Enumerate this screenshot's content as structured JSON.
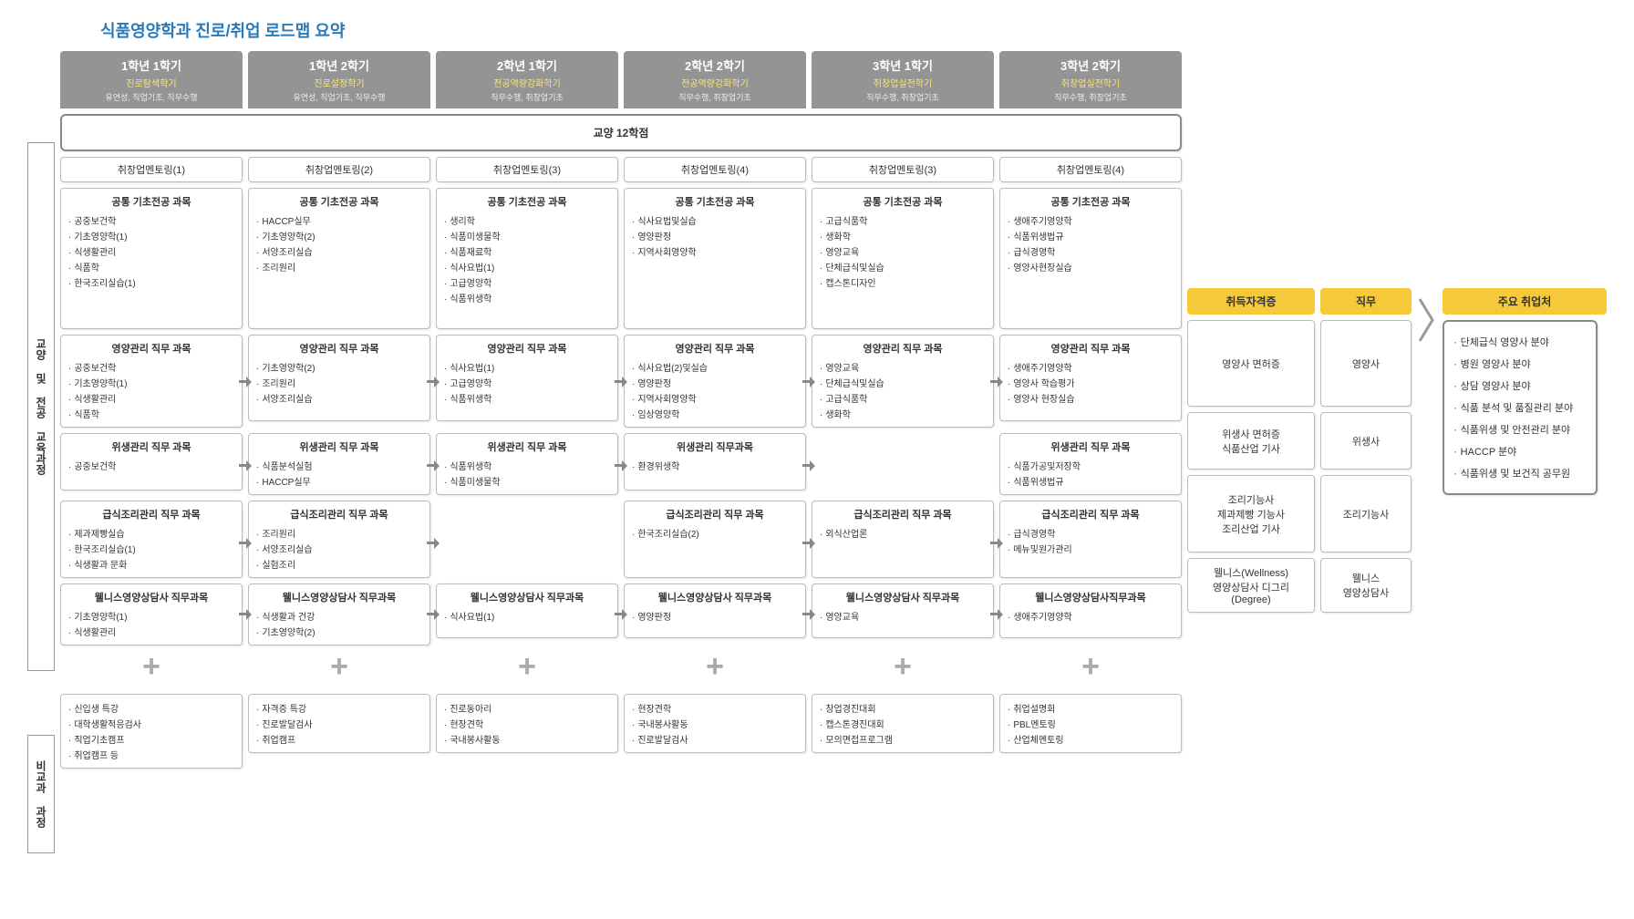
{
  "title": "식품영양학과 진로/취업 로드맵 요약",
  "sidebar": {
    "top": "교양 및 전공 교육과정",
    "bottom": "비교과 과정"
  },
  "bigbar": "교양 12학점",
  "plus": "+",
  "semesters": [
    {
      "l1": "1학년 1학기",
      "l2": "진로탐색학기",
      "l3": "유연성, 직업기초, 직무수행",
      "mentor": "취창업멘토링(1)",
      "common": {
        "t": "공통 기초전공 과목",
        "i": [
          "공중보건학",
          "기초영양학(1)",
          "식생활관리",
          "식품학",
          "한국조리실습(1)"
        ]
      },
      "tracks": [
        {
          "t": "영양관리 직무 과목",
          "i": [
            "공중보건학",
            "기초영양학(1)",
            "식생활관리",
            "식품학"
          ]
        },
        {
          "t": "위생관리 직무 과목",
          "i": [
            "공중보건학"
          ]
        },
        {
          "t": "급식조리관리 직무 과목",
          "i": [
            "제과제빵실습",
            "한국조리실습(1)",
            "식생활과 문화"
          ]
        },
        {
          "t": "웰니스영양상담사 직무과목",
          "i": [
            "기초영양학(1)",
            "식생활관리"
          ]
        }
      ],
      "extra": [
        "신입생 특강",
        "대학생활적응검사",
        "직업기초캠프",
        "취업캠프 등"
      ]
    },
    {
      "l1": "1학년 2학기",
      "l2": "진로설정학기",
      "l3": "유연성, 직업기초, 직무수행",
      "mentor": "취창업멘토링(2)",
      "common": {
        "t": "공통 기초전공 과목",
        "i": [
          "HACCP실무",
          "기초영양학(2)",
          "서양조리실습",
          "조리원리"
        ]
      },
      "tracks": [
        {
          "t": "영양관리 직무 과목",
          "i": [
            "기초영양학(2)",
            "조리원리",
            "서양조리실습"
          ]
        },
        {
          "t": "위생관리 직무 과목",
          "i": [
            "식품분석실험",
            "HACCP실무"
          ]
        },
        {
          "t": "급식조리관리 직무 과목",
          "i": [
            "조리원리",
            "서양조리실습",
            "실험조리"
          ]
        },
        {
          "t": "웰니스영양상담사 직무과목",
          "i": [
            "식생활과 건강",
            "기초영양학(2)"
          ]
        }
      ],
      "extra": [
        "자격증 특강",
        "진로발달검사",
        "취업캠프"
      ]
    },
    {
      "l1": "2학년 1학기",
      "l2": "전공역량강화학기",
      "l3": "직무수행, 취창업기초",
      "mentor": "취창업멘토링(3)",
      "common": {
        "t": "공통 기초전공 과목",
        "i": [
          "생리학",
          "식품미생물학",
          "식품재료학",
          "식사요법(1)",
          "고급영양학",
          "식품위생학"
        ]
      },
      "tracks": [
        {
          "t": "영양관리 직무 과목",
          "i": [
            "식사요법(1)",
            "고급영양학",
            "식품위생학"
          ]
        },
        {
          "t": "위생관리 직무 과목",
          "i": [
            "식품위생학",
            "식품미생물학"
          ]
        },
        {
          "t": ""
        },
        {
          "t": "웰니스영양상담사 직무과목",
          "i": [
            "식사요법(1)"
          ]
        }
      ],
      "extra": [
        "진로동아리",
        "현장견학",
        "국내봉사활동"
      ]
    },
    {
      "l1": "2학년 2학기",
      "l2": "전공역량강화학기",
      "l3": "직무수행, 취창업기초",
      "mentor": "취창업멘토링(4)",
      "common": {
        "t": "공통 기초전공 과목",
        "i": [
          "식사요법및실습",
          "영양판정",
          "지역사회영양학"
        ]
      },
      "tracks": [
        {
          "t": "영양관리 직무 과목",
          "i": [
            "식사요법(2)및실습",
            "영양판정",
            "지역사회영양학",
            "임상영양학"
          ]
        },
        {
          "t": "위생관리 직무과목",
          "i": [
            "환경위생학"
          ]
        },
        {
          "t": "급식조리관리 직무 과목",
          "i": [
            "한국조리실습(2)"
          ]
        },
        {
          "t": "웰니스영양상담사 직무과목",
          "i": [
            "영양판정"
          ]
        }
      ],
      "extra": [
        "현장견학",
        "국내봉사활동",
        "진로발달검사"
      ]
    },
    {
      "l1": "3학년 1학기",
      "l2": "취창업실전학기",
      "l3": "직무수행, 취창업기초",
      "mentor": "취창업멘토링(3)",
      "common": {
        "t": "공통 기초전공 과목",
        "i": [
          "고급식품학",
          "생화학",
          "영양교육",
          "단체급식및실습",
          "캡스톤디자인"
        ]
      },
      "tracks": [
        {
          "t": "영양관리 직무 과목",
          "i": [
            "영양교육",
            "단체급식및실습",
            "고급식품학",
            "생화학"
          ]
        },
        {
          "t": ""
        },
        {
          "t": "급식조리관리 직무 과목",
          "i": [
            "외식산업론"
          ]
        },
        {
          "t": "웰니스영양상담사 직무과목",
          "i": [
            "영양교육"
          ]
        }
      ],
      "extra": [
        "창업경진대회",
        "캡스톤경진대회",
        "모의면접프로그램"
      ]
    },
    {
      "l1": "3학년 2학기",
      "l2": "취창업실전학기",
      "l3": "직무수행, 취창업기초",
      "mentor": "취창업멘토링(4)",
      "common": {
        "t": "공통 기초전공 과목",
        "i": [
          "생애주기영양학",
          "식품위생법규",
          "급식경영학",
          "영양사현장실습"
        ]
      },
      "tracks": [
        {
          "t": "영양관리 직무 과목",
          "i": [
            "생애주기영양학",
            "영양사 학습평가",
            "영양사 현장실습"
          ]
        },
        {
          "t": "위생관리 직무 과목",
          "i": [
            "식품가공및저장학",
            "식품위생법규"
          ]
        },
        {
          "t": "급식조리관리 직무 과목",
          "i": [
            "급식경영학",
            "메뉴및원가관리"
          ]
        },
        {
          "t": "웰니스영양상담사직무과목",
          "i": [
            "생애주기영양학"
          ]
        }
      ],
      "extra": [
        "취업설명회",
        "PBL멘토링",
        "산업체멘토링"
      ]
    }
  ],
  "right": {
    "certhead": "취득자격증",
    "jobhead": "직무",
    "outhead": "주요 취업처",
    "rows": [
      {
        "cert": [
          "영양사 면허증"
        ],
        "job": "영양사"
      },
      {
        "cert": [
          "위생사 면허증",
          "식품산업 기사"
        ],
        "job": "위생사"
      },
      {
        "cert": [
          "조리기능사",
          "제과제빵 기능사",
          "조리산업 기사"
        ],
        "job": "조리기능사"
      },
      {
        "cert": [
          "웰니스(Wellness)",
          "영양상담사 디그리",
          "(Degree)"
        ],
        "job": "웰니스\n영양상담사"
      }
    ],
    "out": [
      "단체급식 영양사 분야",
      "병원 영양사 분야",
      "상담 영양사 분야",
      "식품 분석 및 품질관리 분야",
      "식품위생 및 안전관리 분야",
      "HACCP 분야",
      "식품위생 및 보건직 공무원"
    ]
  },
  "trackheights": [
    95,
    63,
    85,
    60
  ],
  "colors": {
    "header": "#949494",
    "accent": "#f5c93a",
    "title": "#2a7ab8"
  }
}
